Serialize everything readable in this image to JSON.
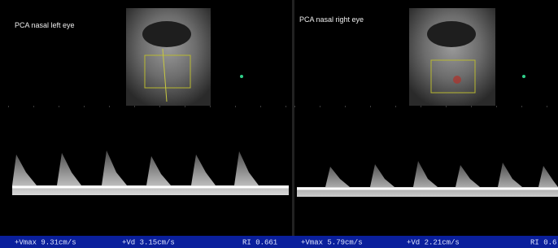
{
  "panels": [
    {
      "label": "PCA nasal left eye",
      "footer": [
        "+Vmax 9.31cm/s",
        "+Vd 3.15cm/s",
        "RI 0.661"
      ]
    },
    {
      "label": "PCA nasal right eye",
      "footer": [
        "+Vmax 5.79cm/s",
        "+Vd 2.21cm/s",
        "RI 0.6"
      ]
    }
  ]
}
